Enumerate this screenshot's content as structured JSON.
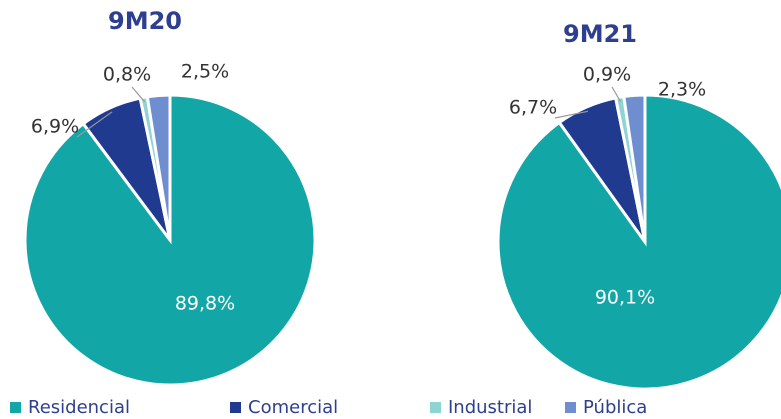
{
  "chart_data": [
    {
      "type": "pie",
      "title": "9M20",
      "categories": [
        "Residencial",
        "Comercial",
        "Industrial",
        "Pública"
      ],
      "values": [
        89.8,
        6.9,
        0.8,
        2.5
      ],
      "value_labels": [
        "89,8%",
        "6,9%",
        "0,8%",
        "2,5%"
      ],
      "colors": [
        "#12a6a6",
        "#1f3a8e",
        "#8fd4d4",
        "#6f8ed0"
      ]
    },
    {
      "type": "pie",
      "title": "9M21",
      "categories": [
        "Residencial",
        "Comercial",
        "Industrial",
        "Pública"
      ],
      "values": [
        90.1,
        6.7,
        0.9,
        2.3
      ],
      "value_labels": [
        "90,1%",
        "6,7%",
        "0,9%",
        "2,3%"
      ],
      "colors": [
        "#12a6a6",
        "#1f3a8e",
        "#8fd4d4",
        "#6f8ed0"
      ]
    }
  ]
}
